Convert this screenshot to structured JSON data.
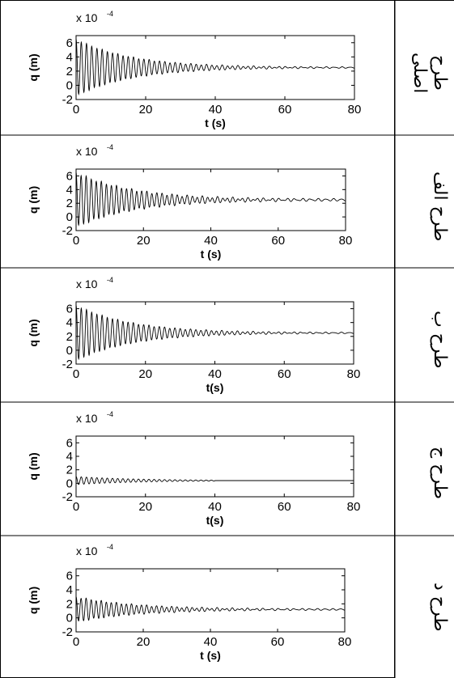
{
  "rows": [
    {
      "label": "طرح اصلی",
      "scale_text": "x 10",
      "scale_exp": "-4",
      "xlabel": "t (s)",
      "ylabel": "q (m)",
      "plot": {
        "type": "line",
        "xlim": [
          0,
          80
        ],
        "ylim": [
          -2,
          7
        ],
        "yticks": [
          -2,
          0,
          2,
          4,
          6
        ],
        "xticks": [
          0,
          20,
          40,
          60,
          80
        ],
        "steady": 2.5,
        "amp0": 4.0,
        "tau": 16,
        "period": 1.5,
        "tail_amp": 0.08
      }
    },
    {
      "label": "طرح الف",
      "scale_text": "x 10",
      "scale_exp": "-4",
      "xlabel": "t (s)",
      "ylabel": "q (m)",
      "plot": {
        "type": "line",
        "xlim": [
          0,
          80
        ],
        "ylim": [
          -2,
          7
        ],
        "yticks": [
          -2,
          0,
          2,
          4,
          6
        ],
        "xticks": [
          0,
          20,
          40,
          60,
          80
        ],
        "steady": 2.5,
        "amp0": 4.0,
        "tau": 17,
        "period": 1.5,
        "tail_amp": 0.15
      }
    },
    {
      "label": "طرح ب",
      "scale_text": "x 10",
      "scale_exp": "-4",
      "xlabel": "t(s)",
      "ylabel": "q (m)",
      "plot": {
        "type": "line",
        "xlim": [
          0,
          80
        ],
        "ylim": [
          -2,
          7
        ],
        "yticks": [
          -2,
          0,
          2,
          4,
          6
        ],
        "xticks": [
          0,
          20,
          40,
          60,
          80
        ],
        "steady": 2.5,
        "amp0": 4.0,
        "tau": 16,
        "period": 1.5,
        "tail_amp": 0.08
      }
    },
    {
      "label": "طرح ج",
      "scale_text": "x 10",
      "scale_exp": "-4",
      "xlabel": "t(s)",
      "ylabel": "q (m)",
      "plot": {
        "type": "line",
        "xlim": [
          0,
          80
        ],
        "ylim": [
          -2,
          7
        ],
        "yticks": [
          -2,
          0,
          2,
          4,
          6
        ],
        "xticks": [
          0,
          20,
          40,
          60,
          80
        ],
        "steady": 0.4,
        "amp0": 0.6,
        "tau": 18,
        "period": 1.5,
        "tail_amp": 0.0,
        "end_t": 40
      }
    },
    {
      "label": "طرح د",
      "scale_text": "x 10",
      "scale_exp": "-4",
      "xlabel": "t (s)",
      "ylabel": "q (m)",
      "plot": {
        "type": "line",
        "xlim": [
          0,
          80
        ],
        "ylim": [
          -2,
          7
        ],
        "yticks": [
          -2,
          0,
          2,
          4,
          6
        ],
        "xticks": [
          0,
          20,
          40,
          60,
          80
        ],
        "steady": 1.2,
        "amp0": 1.8,
        "tau": 18,
        "period": 1.5,
        "tail_amp": 0.1
      }
    }
  ],
  "chart_data": [
    {
      "type": "line",
      "title": "",
      "xlabel": "t (s)",
      "ylabel": "q (m)",
      "xlim": [
        0,
        80
      ],
      "ylim": [
        -2,
        7
      ],
      "y_multiplier": "x 10^-4",
      "description_series": [
        {
          "x": [
            0,
            10,
            20,
            30,
            40,
            60,
            80
          ],
          "y": [
            6.5,
            5.0,
            3.8,
            3.0,
            2.7,
            2.5,
            2.5
          ]
        }
      ]
    },
    {
      "type": "line",
      "title": "",
      "xlabel": "t (s)",
      "ylabel": "q (m)",
      "xlim": [
        0,
        80
      ],
      "ylim": [
        -2,
        7
      ],
      "y_multiplier": "x 10^-4",
      "description_series": [
        {
          "x": [
            0,
            10,
            20,
            30,
            40,
            60,
            80
          ],
          "y": [
            6.5,
            5.2,
            3.9,
            3.1,
            2.7,
            2.6,
            2.5
          ]
        }
      ]
    },
    {
      "type": "line",
      "title": "",
      "xlabel": "t(s)",
      "ylabel": "q (m)",
      "xlim": [
        0,
        80
      ],
      "ylim": [
        -2,
        7
      ],
      "y_multiplier": "x 10^-4",
      "description_series": [
        {
          "x": [
            0,
            10,
            20,
            30,
            40,
            60,
            80
          ],
          "y": [
            6.5,
            5.0,
            3.8,
            3.0,
            2.7,
            2.5,
            2.5
          ]
        }
      ]
    },
    {
      "type": "line",
      "title": "",
      "xlabel": "t(s)",
      "ylabel": "q (m)",
      "xlim": [
        0,
        80
      ],
      "ylim": [
        -2,
        7
      ],
      "y_multiplier": "x 10^-4",
      "description_series": [
        {
          "x": [
            0,
            10,
            20,
            30,
            40,
            60,
            80
          ],
          "y": [
            1.0,
            0.8,
            0.6,
            0.5,
            0.4,
            0.4,
            0.4
          ]
        }
      ]
    },
    {
      "type": "line",
      "title": "",
      "xlabel": "t (s)",
      "ylabel": "q (m)",
      "xlim": [
        0,
        80
      ],
      "ylim": [
        -2,
        7
      ],
      "y_multiplier": "x 10^-4",
      "description_series": [
        {
          "x": [
            0,
            10,
            20,
            30,
            40,
            60,
            80
          ],
          "y": [
            3.0,
            2.4,
            1.8,
            1.5,
            1.3,
            1.2,
            1.2
          ]
        }
      ]
    }
  ]
}
